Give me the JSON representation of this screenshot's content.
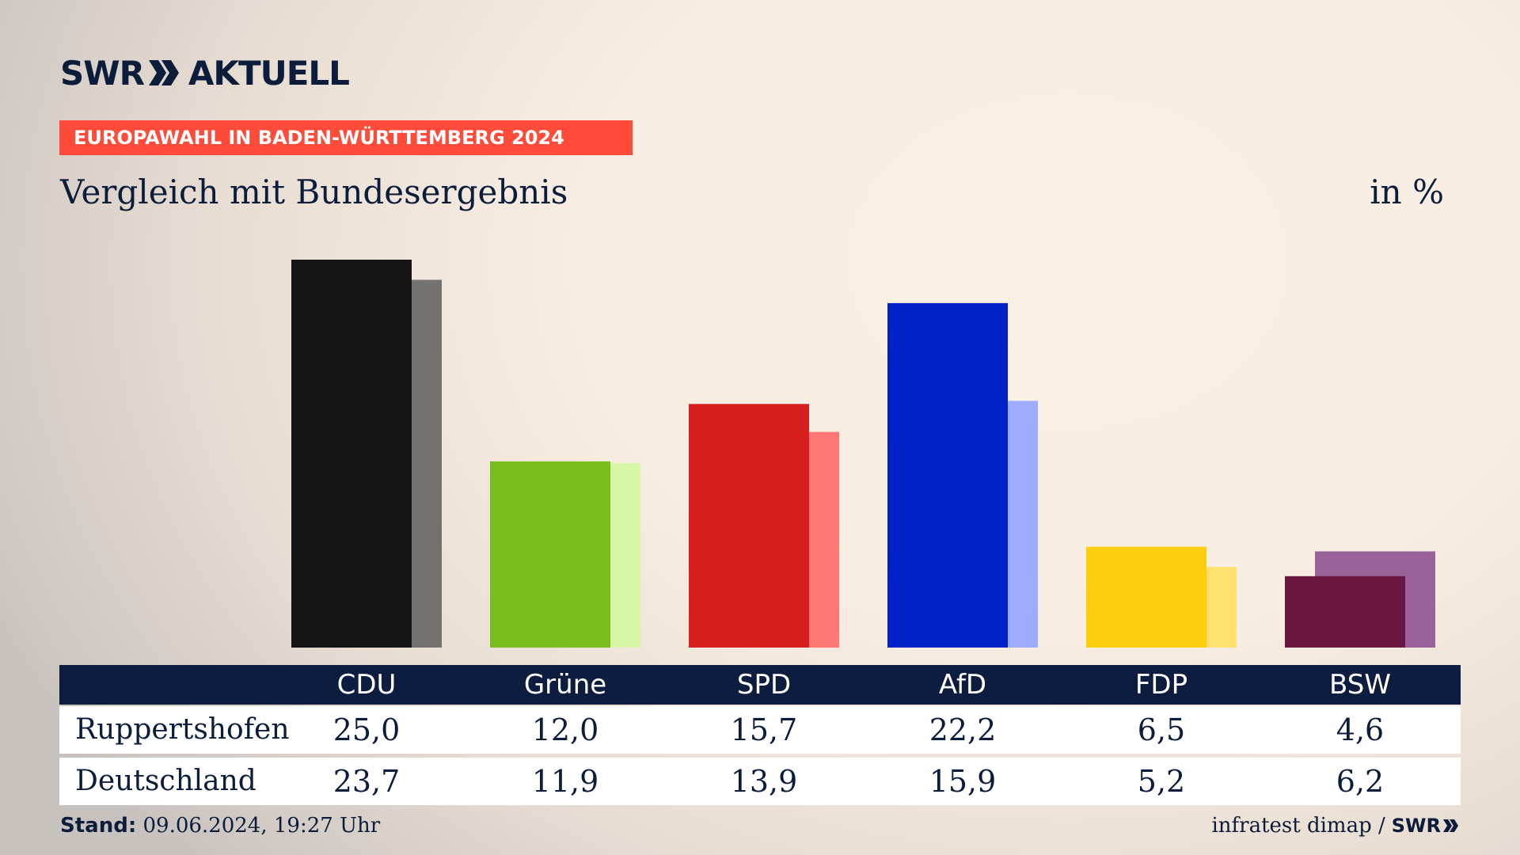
{
  "brand": {
    "swr": "SWR",
    "aktuell": "AKTUELL",
    "icon": "double-chevron-right-icon"
  },
  "banner": "EUROPAWAHL IN BADEN-WÜRTTEMBERG 2024",
  "subtitle": "Vergleich mit Bundesergebnis",
  "unit": "in %",
  "colors": {
    "navy": "#0b1d3b",
    "banner": "#ff4b3a"
  },
  "chart_data": {
    "type": "bar",
    "categories": [
      "CDU",
      "Grüne",
      "SPD",
      "AfD",
      "FDP",
      "BSW"
    ],
    "series": [
      {
        "name": "Ruppertshofen",
        "values": [
          25.0,
          12.0,
          15.7,
          22.2,
          6.5,
          4.6
        ],
        "display": [
          "25,0",
          "12,0",
          "15,7",
          "22,2",
          "6,5",
          "4,6"
        ]
      },
      {
        "name": "Deutschland",
        "values": [
          23.7,
          11.9,
          13.9,
          15.9,
          5.2,
          6.2
        ],
        "display": [
          "23,7",
          "11,9",
          "13,9",
          "15,9",
          "5,2",
          "6,2"
        ]
      }
    ],
    "colors_primary": [
      "#141414",
      "#79bd1d",
      "#d81f1f",
      "#0022c8",
      "#fdcd0e",
      "#6a1840"
    ],
    "colors_secondary": [
      "#747270",
      "#d8f6a8",
      "#ff7672",
      "#9eacff",
      "#fee16e",
      "#9b6199"
    ],
    "ylim": [
      0,
      25
    ],
    "grid": false,
    "legend": "table-below"
  },
  "footer": {
    "stand_label": "Stand:",
    "stand_value": "09.06.2024, 19:27 Uhr",
    "source": "infratest dimap /",
    "source_brand": "SWR"
  }
}
